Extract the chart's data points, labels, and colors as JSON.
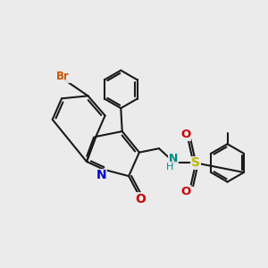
{
  "bg_color": "#ebebeb",
  "bond_color": "#1a1a1a",
  "bond_width": 1.5,
  "atom_colors": {
    "Br": "#cc5500",
    "N_quinoline": "#0000cc",
    "O_carbonyl": "#cc0000",
    "O_sulfonyl": "#cc0000",
    "N_sulfonamide": "#008888",
    "S": "#bbbb00",
    "C": "#1a1a1a"
  },
  "figsize": [
    3.0,
    3.0
  ],
  "dpi": 100,
  "xlim": [
    0,
    10
  ],
  "ylim": [
    0,
    10
  ]
}
